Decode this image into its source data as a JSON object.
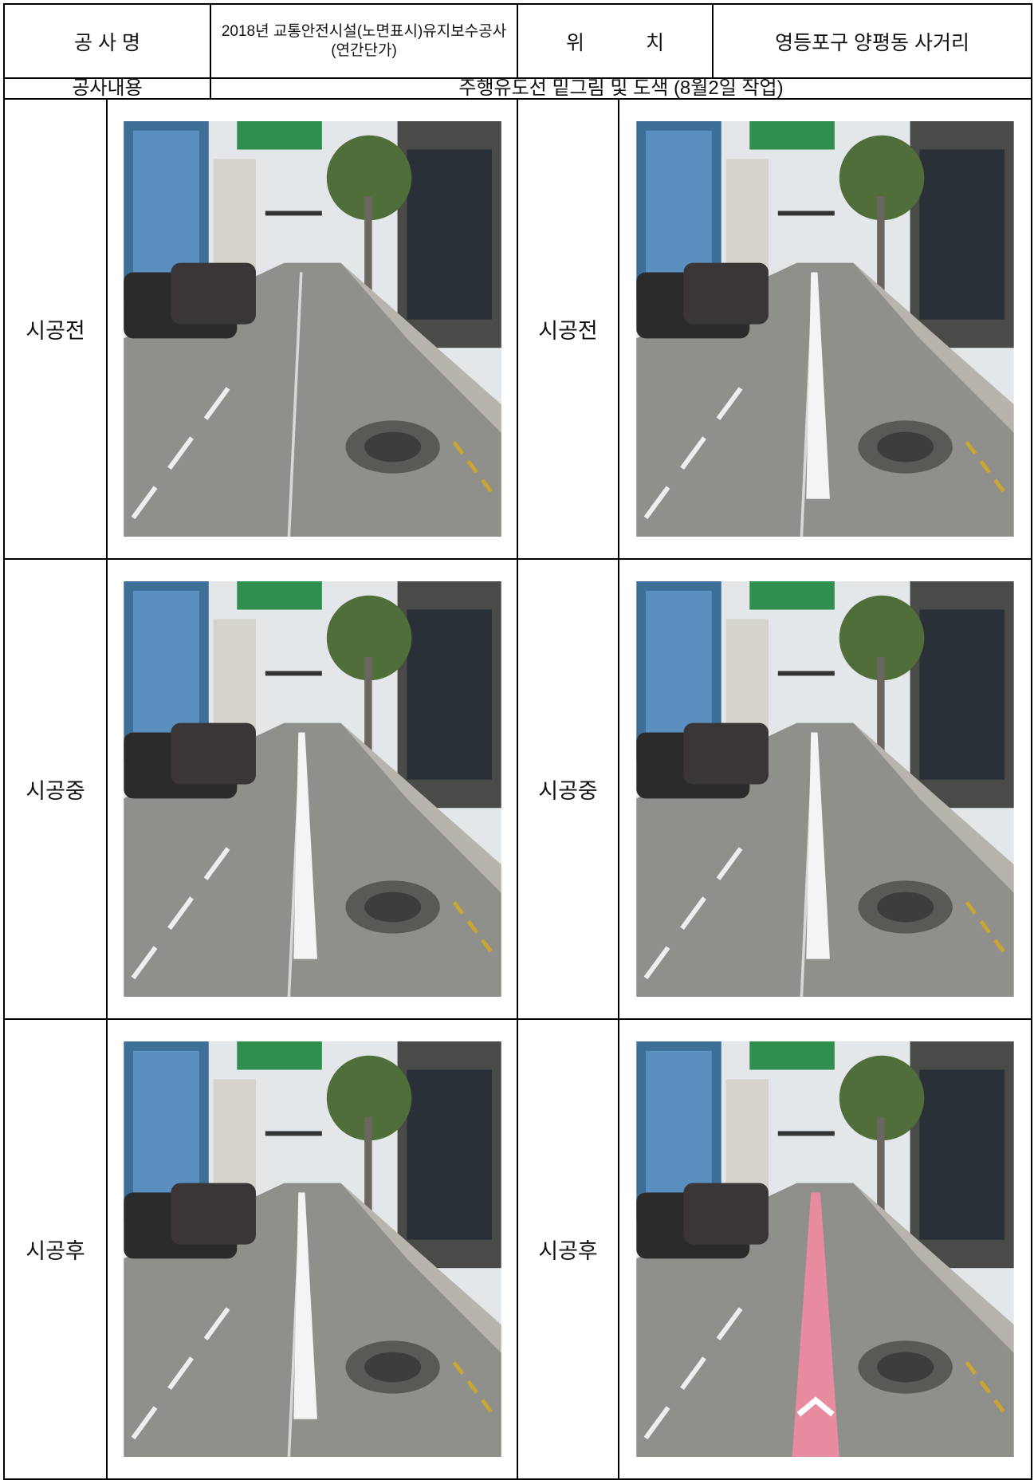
{
  "header": {
    "project_label": "공 사 명",
    "project_name": "2018년 교통안전시설(노면표시)유지보수공사(연간단가)",
    "location_label": "위 치",
    "location": "영등포구 양평동 사거리",
    "content_label": "공사내용",
    "content": "주행유도선 밑그림 및 도색 (8월2일 작업)"
  },
  "rows": [
    {
      "left_label": "시공전",
      "right_label": "시공전"
    },
    {
      "left_label": "시공중",
      "right_label": "시공중"
    },
    {
      "left_label": "시공후",
      "right_label": "시공후"
    }
  ]
}
